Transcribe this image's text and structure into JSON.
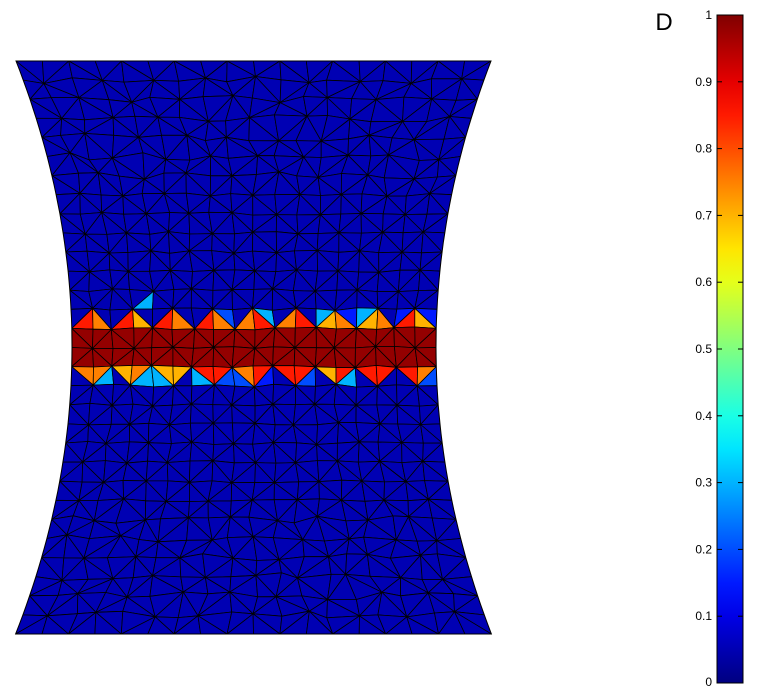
{
  "chart_data": {
    "type": "heatmap",
    "plot_kind": "finite-element contour plot on a triangulated mesh",
    "variable": "D",
    "colormap": "jet",
    "colorbar": {
      "title": "D",
      "range": [
        0,
        1
      ],
      "ticks": [
        "0",
        "0.1",
        "0.2",
        "0.3",
        "0.4",
        "0.5",
        "0.6",
        "0.7",
        "0.8",
        "0.9",
        "1"
      ],
      "placement": "right"
    },
    "field": {
      "background_value": 0.05,
      "damage_band": {
        "location": "horizontal band through the specimen's middle (narrowest section)",
        "core_value": 0.98,
        "edge_values": [
          0.75,
          0.7,
          0.85,
          0.15,
          0.2,
          0.3
        ]
      }
    },
    "mesh_edges_visible": true,
    "axes_visible": false,
    "grid": false
  }
}
